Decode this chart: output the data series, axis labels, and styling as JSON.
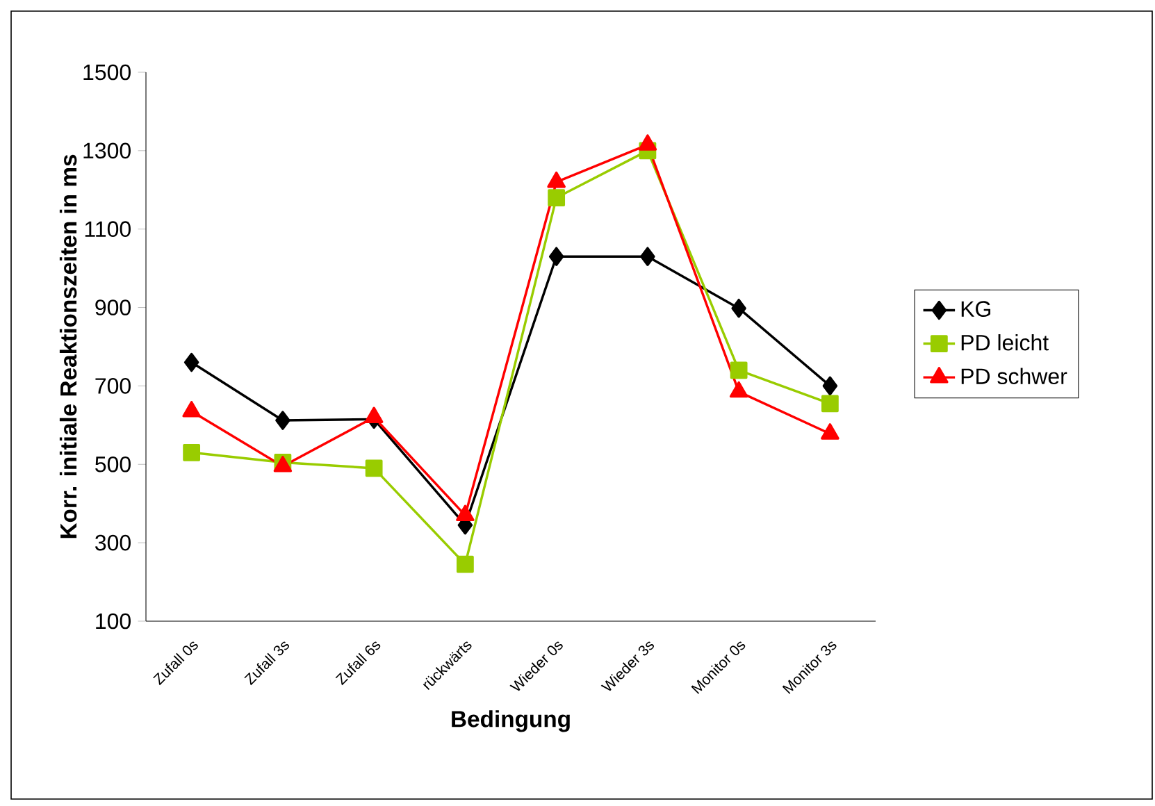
{
  "chart_data": {
    "type": "line",
    "xlabel": "Bedingung",
    "ylabel": "Korr. initiale Reaktionszeiten in ms",
    "categories": [
      "Zufall 0s",
      "Zufall 3s",
      "Zufall 6s",
      "rückwärts",
      "Wieder 0s",
      "Wieder 3s",
      "Monitor 0s",
      "Monitor 3s"
    ],
    "series": [
      {
        "name": "KG",
        "color": "#000000",
        "marker": "diamond",
        "values": [
          760,
          612,
          615,
          345,
          1030,
          1030,
          898,
          700
        ]
      },
      {
        "name": "PD leicht",
        "color": "#99cc00",
        "marker": "square",
        "values": [
          530,
          505,
          490,
          245,
          1180,
          1300,
          740,
          655
        ]
      },
      {
        "name": "PD schwer",
        "color": "#ff0000",
        "marker": "triangle",
        "values": [
          635,
          495,
          620,
          370,
          1220,
          1315,
          685,
          578
        ]
      }
    ],
    "ylim": [
      100,
      1500
    ],
    "yticks": [
      100,
      300,
      500,
      700,
      900,
      1100,
      1300,
      1500
    ],
    "grid": false,
    "legend": "right",
    "line_style": "solid"
  }
}
